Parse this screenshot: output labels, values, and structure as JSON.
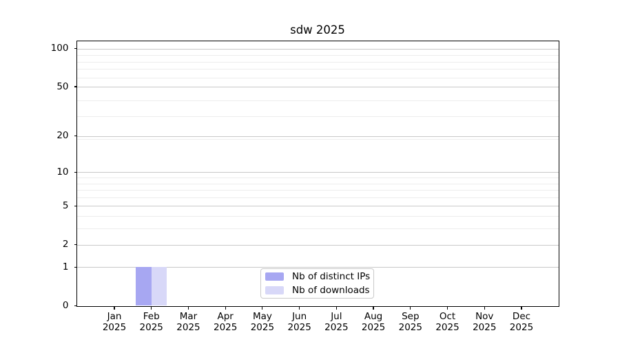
{
  "chart_data": {
    "type": "bar",
    "title": "sdw 2025",
    "x_year": "2025",
    "categories": [
      "Jan",
      "Feb",
      "Mar",
      "Apr",
      "May",
      "Jun",
      "Jul",
      "Aug",
      "Sep",
      "Oct",
      "Nov",
      "Dec"
    ],
    "series": [
      {
        "name": "Nb of distinct IPs",
        "color": "#a7a7f2",
        "values": [
          0,
          1,
          0,
          0,
          0,
          0,
          0,
          0,
          0,
          0,
          0,
          0
        ]
      },
      {
        "name": "Nb of downloads",
        "color": "#d8d8f8",
        "values": [
          0,
          1,
          0,
          0,
          0,
          0,
          0,
          0,
          0,
          0,
          0,
          0
        ]
      }
    ],
    "y_ticks": [
      0,
      1,
      2,
      5,
      10,
      20,
      50,
      100
    ],
    "scale": "log1p",
    "ylim": [
      0,
      113
    ],
    "grid": true,
    "legend_position": "lower center"
  }
}
